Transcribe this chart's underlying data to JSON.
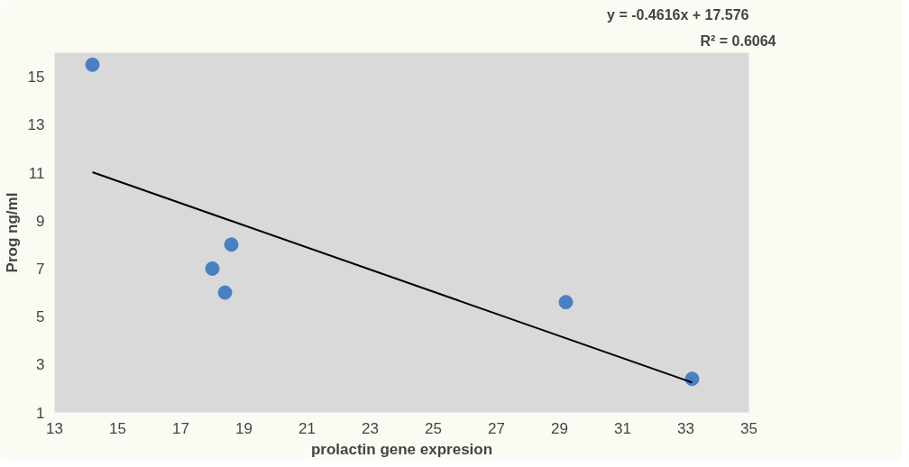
{
  "chart_data": {
    "type": "scatter",
    "xlabel": "prolactin gene expresion",
    "ylabel": "Prog ng/ml",
    "xlim": [
      13,
      35
    ],
    "ylim": [
      1,
      16
    ],
    "xticks": [
      13,
      15,
      17,
      19,
      21,
      23,
      25,
      27,
      29,
      31,
      33,
      35
    ],
    "yticks": [
      1,
      3,
      5,
      7,
      9,
      11,
      13,
      15
    ],
    "grid": false,
    "series": [
      {
        "marker": "circle",
        "color": "#4a7fc1",
        "x": [
          14.2,
          18.0,
          18.6,
          18.4,
          29.2,
          33.2
        ],
        "values": [
          15.5,
          7.0,
          8.0,
          6.0,
          5.6,
          2.4
        ]
      },
      {
        "type": "line",
        "color": "#000000",
        "x": [
          14.2,
          33.2
        ],
        "values": [
          11.02,
          2.25
        ]
      }
    ],
    "annotations": [
      "y = -0.4616x + 17.576",
      "R² = 0.6064"
    ]
  }
}
